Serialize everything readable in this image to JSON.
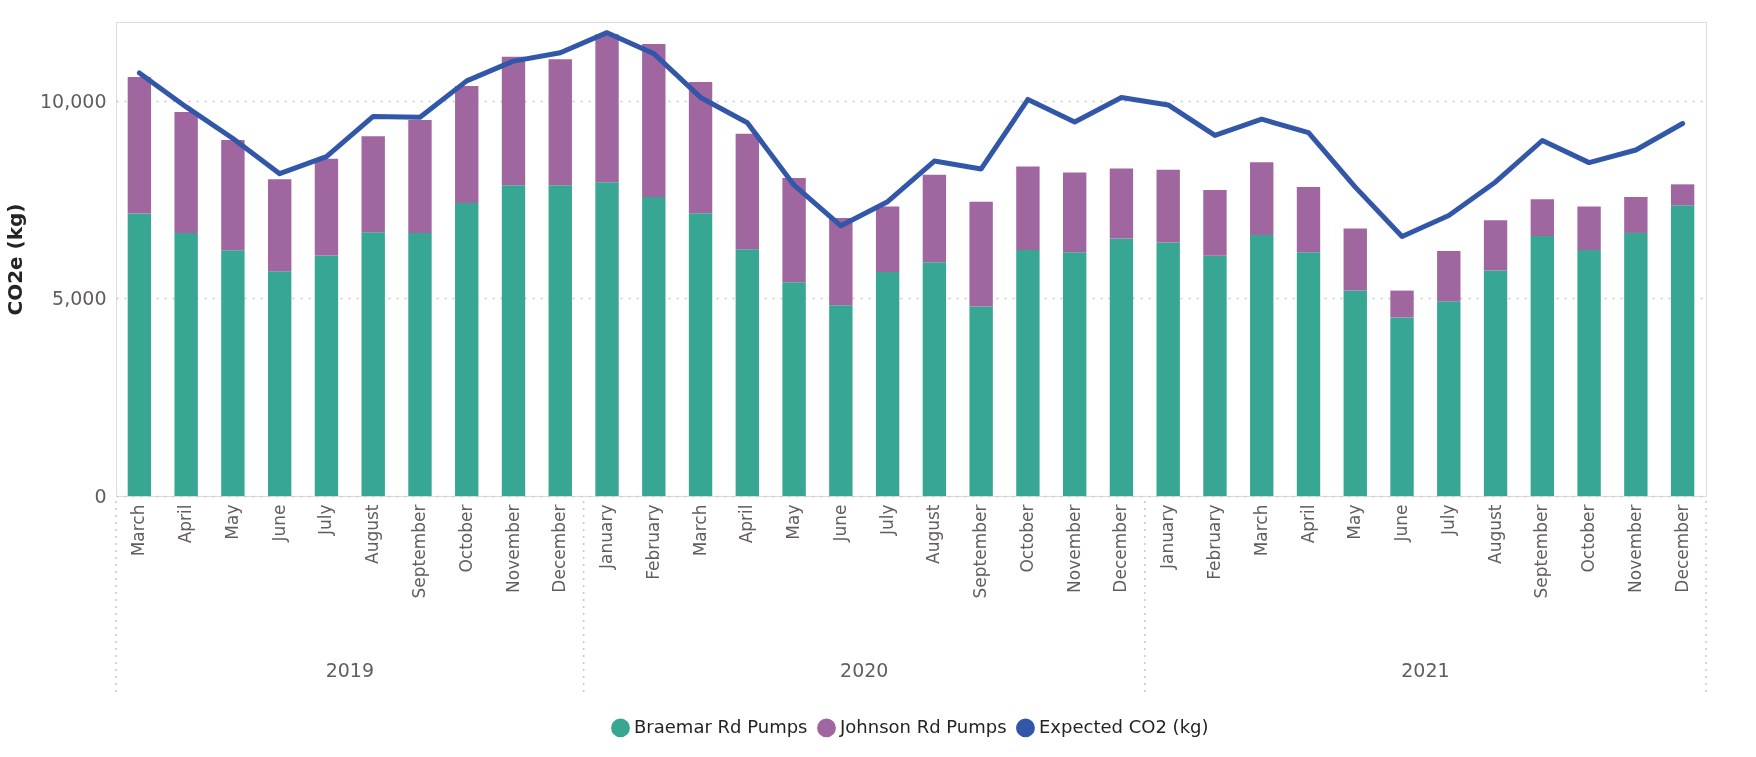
{
  "chart_data": {
    "type": "bar",
    "stacked": true,
    "ylabel": "CO2e (kg)",
    "categories": [
      "March",
      "April",
      "May",
      "June",
      "July",
      "August",
      "September",
      "October",
      "November",
      "December",
      "January",
      "February",
      "March",
      "April",
      "May",
      "June",
      "July",
      "August",
      "September",
      "October",
      "November",
      "December",
      "January",
      "February",
      "March",
      "April",
      "May",
      "June",
      "July",
      "August",
      "September",
      "October",
      "November",
      "December"
    ],
    "series": [
      {
        "name": "Braemar Rd Pumps",
        "color": "#37a794",
        "values": [
          7150,
          6660,
          6220,
          5690,
          6090,
          6680,
          6660,
          7420,
          7870,
          7870,
          7940,
          7570,
          7160,
          6250,
          5410,
          4830,
          5670,
          5920,
          4800,
          6230,
          6170,
          6520,
          6420,
          6080,
          6610,
          6170,
          5200,
          4520,
          4930,
          5710,
          6580,
          6230,
          6660,
          7360
        ]
      },
      {
        "name": "Johnson Rd Pumps",
        "color": "#a066a0",
        "values": [
          3460,
          3060,
          2790,
          2330,
          2450,
          2430,
          2860,
          2960,
          3250,
          3190,
          3750,
          3870,
          3320,
          2920,
          2640,
          2210,
          1660,
          2210,
          2650,
          2110,
          2020,
          1770,
          1840,
          1670,
          1840,
          1650,
          1570,
          680,
          1270,
          1270,
          930,
          1100,
          910,
          530
        ]
      },
      {
        "name": "Expected CO2 (kg)",
        "type": "line",
        "color": "#3257a8",
        "values": [
          10710,
          9850,
          9050,
          8160,
          8590,
          9610,
          9590,
          10510,
          11010,
          11220,
          11730,
          11200,
          10090,
          9450,
          7870,
          6840,
          7450,
          8480,
          8280,
          10040,
          9470,
          10090,
          9900,
          9130,
          9540,
          9200,
          7820,
          6570,
          7100,
          7950,
          9000,
          8440,
          8760,
          9430
        ]
      }
    ],
    "ylim": [
      0,
      12000
    ],
    "yticks": [
      0,
      {
        "value": 5000,
        "label": "5,000"
      },
      {
        "value": 10000,
        "label": "10,000"
      }
    ],
    "grid": "y",
    "legend": "bottom",
    "marker": "none",
    "line_style": "solid",
    "annotations": [
      "2019",
      "2020",
      "2021"
    ]
  }
}
